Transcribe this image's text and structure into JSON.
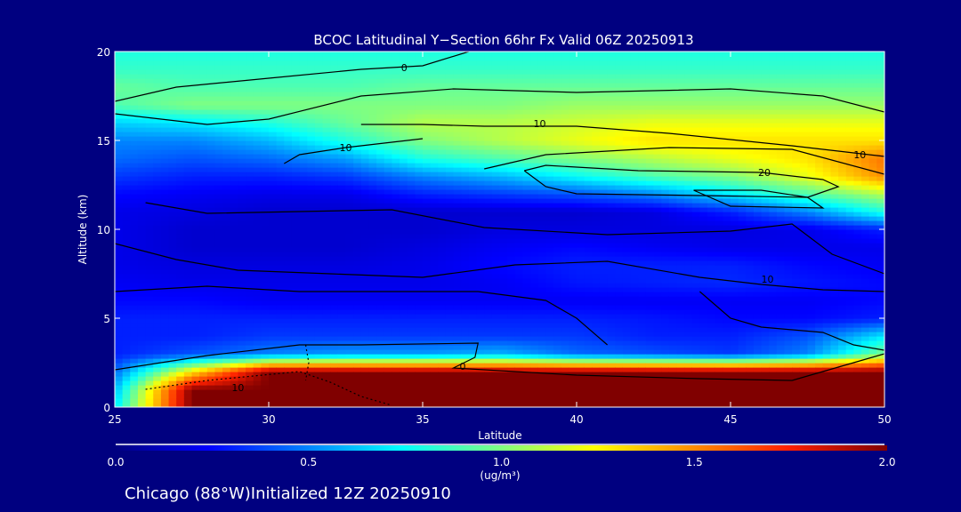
{
  "chart_data": {
    "type": "heatmap",
    "title": "BCOC Latitudinal Y−Section 66hr  Fx Valid 06Z 20250913",
    "xlabel": "Latitude",
    "ylabel": "Altitude (km)",
    "xlim": [
      25,
      50
    ],
    "ylim": [
      0,
      20
    ],
    "xticks": [
      "25",
      "30",
      "35",
      "40",
      "45",
      "50"
    ],
    "yticks": [
      "0",
      "5",
      "10",
      "15",
      "20"
    ],
    "grid_lat": [
      25,
      27.5,
      30,
      32.5,
      35,
      37.5,
      40,
      42.5,
      45,
      47.5,
      50
    ],
    "grid_alt": [
      0,
      1,
      2,
      3,
      4,
      5,
      6,
      7,
      8,
      9,
      10,
      11,
      12,
      13,
      14,
      15,
      16,
      17,
      18,
      19,
      20
    ],
    "values": [
      [
        0.7,
        2,
        2,
        2,
        2,
        2,
        2,
        2,
        2,
        2,
        2
      ],
      [
        0.6,
        2,
        2,
        2,
        2,
        2,
        2,
        2,
        2,
        2,
        2
      ],
      [
        0.45,
        1.3,
        2,
        2,
        2,
        2,
        2,
        2,
        2,
        2,
        2
      ],
      [
        0.3,
        0.4,
        0.5,
        0.55,
        0.55,
        0.6,
        0.45,
        0.4,
        0.35,
        0.5,
        1.0
      ],
      [
        0.3,
        0.3,
        0.35,
        0.35,
        0.35,
        0.35,
        0.35,
        0.3,
        0.3,
        0.4,
        0.7
      ],
      [
        0.3,
        0.3,
        0.3,
        0.3,
        0.3,
        0.3,
        0.3,
        0.28,
        0.25,
        0.25,
        0.3
      ],
      [
        0.25,
        0.25,
        0.22,
        0.22,
        0.22,
        0.22,
        0.22,
        0.22,
        0.22,
        0.22,
        0.25
      ],
      [
        0.22,
        0.2,
        0.2,
        0.2,
        0.2,
        0.22,
        0.28,
        0.3,
        0.32,
        0.28,
        0.25
      ],
      [
        0.2,
        0.18,
        0.18,
        0.18,
        0.2,
        0.25,
        0.3,
        0.3,
        0.3,
        0.25,
        0.22
      ],
      [
        0.2,
        0.15,
        0.15,
        0.15,
        0.18,
        0.22,
        0.25,
        0.22,
        0.2,
        0.2,
        0.2
      ],
      [
        0.2,
        0.15,
        0.15,
        0.15,
        0.15,
        0.18,
        0.18,
        0.18,
        0.18,
        0.2,
        0.3
      ],
      [
        0.2,
        0.18,
        0.15,
        0.15,
        0.15,
        0.15,
        0.15,
        0.18,
        0.3,
        0.5,
        0.8
      ],
      [
        0.25,
        0.22,
        0.2,
        0.2,
        0.3,
        0.35,
        0.4,
        0.5,
        0.7,
        0.9,
        1.1
      ],
      [
        0.35,
        0.3,
        0.3,
        0.35,
        0.5,
        0.6,
        0.75,
        0.9,
        1.0,
        1.2,
        1.5
      ],
      [
        0.45,
        0.4,
        0.45,
        0.55,
        0.8,
        0.9,
        1.0,
        1.1,
        1.2,
        1.3,
        1.55
      ],
      [
        0.5,
        0.5,
        0.6,
        0.8,
        1.0,
        1.1,
        1.2,
        1.3,
        1.3,
        1.3,
        1.3
      ],
      [
        0.65,
        0.7,
        0.8,
        0.95,
        1.1,
        1.1,
        1.15,
        1.2,
        1.2,
        1.2,
        1.2
      ],
      [
        0.9,
        1.0,
        1.0,
        1.0,
        1.0,
        1.0,
        1.05,
        1.05,
        1.05,
        1.05,
        1.05
      ],
      [
        0.95,
        0.9,
        0.9,
        0.9,
        0.95,
        0.95,
        0.95,
        0.95,
        0.95,
        0.95,
        0.95
      ],
      [
        0.85,
        0.85,
        0.85,
        0.85,
        0.85,
        0.85,
        0.85,
        0.85,
        0.85,
        0.85,
        0.85
      ],
      [
        0.8,
        0.8,
        0.8,
        0.8,
        0.8,
        0.8,
        0.8,
        0.8,
        0.8,
        0.8,
        0.8
      ]
    ],
    "contours": [
      {
        "dashed": false,
        "points": [
          [
            25,
            17.2
          ],
          [
            27,
            18
          ],
          [
            30,
            18.5
          ],
          [
            33,
            19
          ],
          [
            35,
            19.2
          ],
          [
            36.5,
            20
          ]
        ],
        "label": "0",
        "label_at": [
          34.4,
          19.1
        ]
      },
      {
        "dashed": false,
        "points": [
          [
            25,
            16.5
          ],
          [
            28,
            15.9
          ],
          [
            30,
            16.2
          ],
          [
            33,
            17.5
          ],
          [
            36,
            17.9
          ],
          [
            40,
            17.7
          ],
          [
            45,
            17.9
          ],
          [
            48,
            17.5
          ],
          [
            50,
            16.6
          ]
        ]
      },
      {
        "dashed": false,
        "points": [
          [
            33,
            15.9
          ],
          [
            35,
            15.9
          ],
          [
            37,
            15.8
          ],
          [
            40,
            15.8
          ],
          [
            43,
            15.4
          ],
          [
            47,
            14.7
          ],
          [
            50,
            14.1
          ]
        ],
        "label": "10",
        "label_at": [
          38.8,
          15.95
        ]
      },
      {
        "dashed": false,
        "points": [
          [
            35,
            15.1
          ],
          [
            32.5,
            14.6
          ],
          [
            31,
            14.2
          ],
          [
            30.5,
            13.7
          ]
        ],
        "label": "10",
        "label_at": [
          32.5,
          14.6
        ]
      },
      {
        "dashed": false,
        "points": [
          [
            37,
            13.4
          ],
          [
            39,
            14.2
          ],
          [
            43,
            14.6
          ],
          [
            47,
            14.5
          ],
          [
            50,
            13.1
          ]
        ],
        "label": "10",
        "label_at": [
          49.2,
          14.2
        ]
      },
      {
        "dashed": false,
        "points": [
          [
            38.3,
            13.3
          ],
          [
            39,
            13.6
          ],
          [
            42,
            13.3
          ],
          [
            46,
            13.2
          ],
          [
            48,
            12.8
          ],
          [
            48.5,
            12.4
          ],
          [
            47.5,
            11.8
          ],
          [
            44,
            11.9
          ],
          [
            40,
            12.0
          ],
          [
            39,
            12.4
          ],
          [
            38.3,
            13.3
          ]
        ],
        "label": "20",
        "label_at": [
          46.1,
          13.2
        ]
      },
      {
        "dashed": false,
        "points": [
          [
            43.8,
            12.2
          ],
          [
            46,
            12.2
          ],
          [
            47.5,
            11.8
          ],
          [
            48,
            11.2
          ],
          [
            45,
            11.3
          ],
          [
            43.8,
            12.2
          ]
        ]
      },
      {
        "dashed": false,
        "points": [
          [
            26,
            11.5
          ],
          [
            28,
            10.9
          ],
          [
            31,
            11.0
          ],
          [
            34,
            11.1
          ],
          [
            37,
            10.1
          ],
          [
            41,
            9.7
          ],
          [
            45,
            9.9
          ],
          [
            47,
            10.3
          ],
          [
            48.3,
            8.6
          ],
          [
            50,
            7.5
          ]
        ]
      },
      {
        "dashed": false,
        "points": [
          [
            25,
            9.2
          ],
          [
            27,
            8.3
          ],
          [
            29,
            7.7
          ],
          [
            32,
            7.5
          ],
          [
            35,
            7.3
          ],
          [
            38,
            8.0
          ],
          [
            41,
            8.2
          ],
          [
            44,
            7.3
          ],
          [
            46,
            6.9
          ],
          [
            48,
            6.6
          ],
          [
            50,
            6.5
          ]
        ],
        "label": "10",
        "label_at": [
          46.2,
          7.2
        ]
      },
      {
        "dashed": false,
        "points": [
          [
            25,
            6.5
          ],
          [
            28,
            6.8
          ],
          [
            31,
            6.5
          ],
          [
            34,
            6.5
          ],
          [
            36.8,
            6.5
          ],
          [
            39,
            6.0
          ],
          [
            40,
            5.0
          ],
          [
            41,
            3.5
          ]
        ]
      },
      {
        "dashed": false,
        "points": [
          [
            44,
            6.5
          ],
          [
            45,
            5.0
          ],
          [
            46,
            4.5
          ],
          [
            48,
            4.2
          ],
          [
            49,
            3.5
          ],
          [
            50,
            3.2
          ]
        ]
      },
      {
        "dashed": false,
        "points": [
          [
            25,
            2.1
          ],
          [
            28,
            2.9
          ],
          [
            31,
            3.5
          ],
          [
            33,
            3.5
          ],
          [
            36.8,
            3.6
          ],
          [
            36.7,
            2.8
          ],
          [
            36,
            2.2
          ],
          [
            40,
            1.8
          ],
          [
            44,
            1.6
          ],
          [
            47,
            1.5
          ],
          [
            49,
            2.5
          ],
          [
            50,
            3.0
          ]
        ],
        "label": "0",
        "label_at": [
          36.3,
          2.3
        ]
      },
      {
        "dashed": true,
        "points": [
          [
            26,
            1.0
          ],
          [
            28,
            1.5
          ],
          [
            31,
            2.0
          ],
          [
            32,
            1.4
          ],
          [
            33,
            0.6
          ],
          [
            34,
            0.1
          ]
        ],
        "label": "10",
        "label_at": [
          29,
          1.1
        ]
      },
      {
        "dashed": true,
        "points": [
          [
            31.2,
            3.5
          ],
          [
            31.3,
            2.5
          ],
          [
            31.2,
            1.5
          ]
        ]
      }
    ],
    "colorbar": {
      "ticks": [
        "0.0",
        "0.5",
        "1.0",
        "1.5",
        "2.0"
      ],
      "range": [
        0,
        2
      ],
      "units": "(ug/m³)"
    }
  },
  "footer": {
    "caption": "Chicago (88°W)Initialized 12Z 20250910"
  }
}
